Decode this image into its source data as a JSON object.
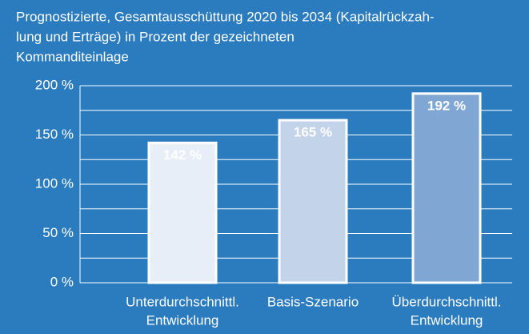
{
  "chart_data": {
    "type": "bar",
    "title": [
      "Prognostizierte, Gesamtausschüttung 2020 bis 2034 (Kapitalrückzah-",
      "lung und Erträge) in Prozent der gezeichneten",
      "Kommanditeinlage"
    ],
    "categories": [
      [
        "Unterdurchschnittl.",
        "Entwicklung"
      ],
      [
        "Basis-Szenario"
      ],
      [
        "Überdurchschnittl.",
        "Entwicklung"
      ]
    ],
    "values": [
      142,
      165,
      192
    ],
    "value_labels": [
      "142 %",
      "165 %",
      "192 %"
    ],
    "colors": [
      "#e8eef7",
      "#c3d3ea",
      "#80a7d4"
    ],
    "ylim": [
      0,
      200
    ],
    "yticks": [
      {
        "value": 0,
        "label": "0 %"
      },
      {
        "value": 50,
        "label": "50 %"
      },
      {
        "value": 100,
        "label": "100 %"
      },
      {
        "value": 150,
        "label": "150 %"
      },
      {
        "value": 200,
        "label": "200 %"
      }
    ],
    "minor_gridlines": [
      25,
      75,
      125,
      175
    ],
    "grid": true
  }
}
